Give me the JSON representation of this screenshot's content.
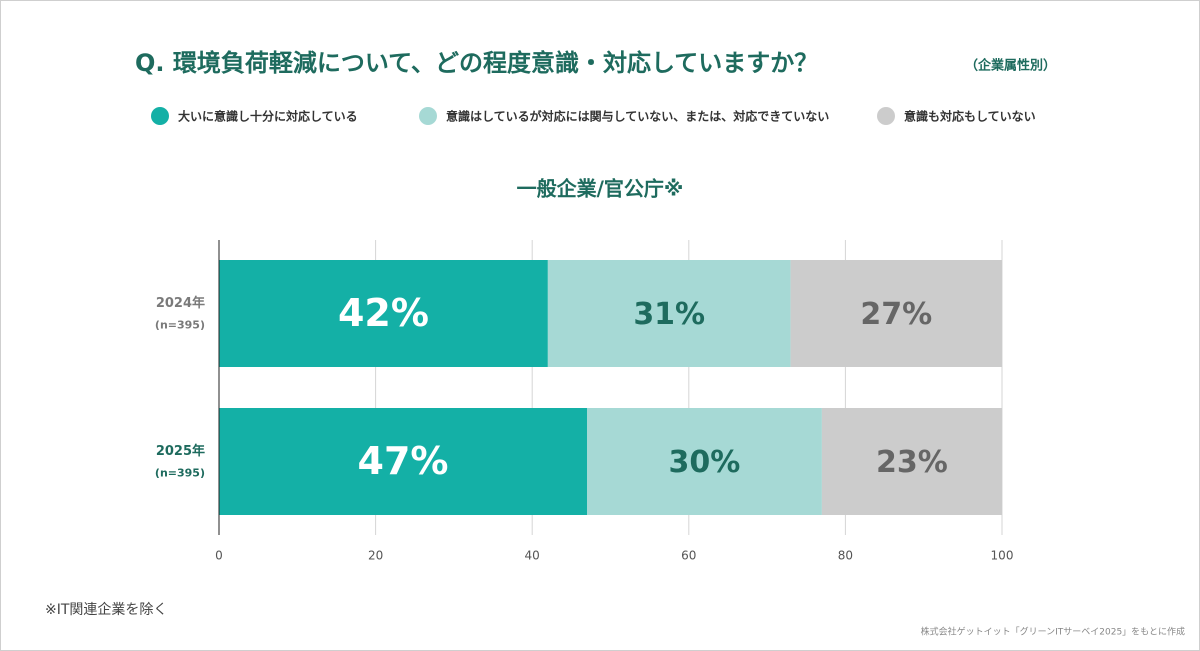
{
  "chart_data": {
    "type": "stacked_barh",
    "title": "Q. 環境負荷軽減について、どの程度意識・対応していますか？",
    "title_note": "（企業属性別）",
    "subtitle": "一般企業/官公庁※",
    "categories": [
      "2024年",
      "2025年"
    ],
    "category_notes": [
      "(n=395)",
      "(n=395)"
    ],
    "category_colors": [
      "#7a7a7a",
      "#1e6b5e"
    ],
    "series": [
      {
        "name": "大いに意識し十分に対応している",
        "color": "#14b0a6",
        "label_color": "#ffffff",
        "values": [
          42,
          47
        ],
        "value_labels": [
          "42%",
          "47%"
        ]
      },
      {
        "name": "意識はしているが対応には関与していない、または、対応できていない",
        "color": "#a6d9d5",
        "label_color": "#1e6b5e",
        "values": [
          31,
          30
        ],
        "value_labels": [
          "31%",
          "30%"
        ]
      },
      {
        "name": "意識も対応もしていない",
        "color": "#cccccc",
        "label_color": "#666666",
        "values": [
          27,
          23
        ],
        "value_labels": [
          "27%",
          "23%"
        ]
      }
    ],
    "xlim": [
      0,
      100
    ],
    "xticks": [
      0,
      20,
      40,
      60,
      80,
      100
    ],
    "grid": true,
    "footnote": "※IT関連企業を除く",
    "source": "株式会社ゲットイット「グリーンITサーベイ2025」をもとに作成"
  }
}
